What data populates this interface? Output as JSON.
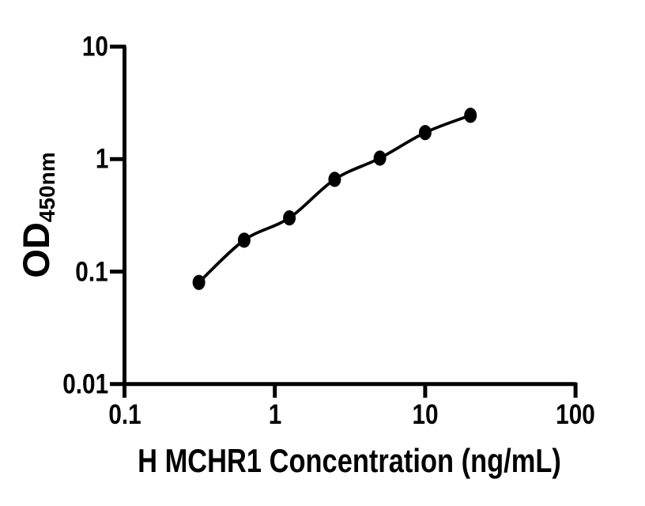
{
  "figure": {
    "background": "#ffffff",
    "axis_color": "#000000",
    "text_color": "#000000"
  },
  "chart_data": {
    "type": "scatter",
    "title": "",
    "xlabel": "H MCHR1 Concentration (ng/mL)",
    "ylabel": "OD",
    "ylabel_subscript": "450nm",
    "x_scale": "log",
    "y_scale": "log",
    "xlim": [
      0.1,
      100
    ],
    "ylim": [
      0.01,
      10
    ],
    "x_ticks": [
      "0.1",
      "1",
      "10",
      "100"
    ],
    "y_ticks": [
      "10",
      "1",
      "0.1",
      "0.01"
    ],
    "grid": false,
    "legend": false,
    "series": [
      {
        "marker": "filled-circle",
        "line": "smooth-fit",
        "color": "#000000",
        "x": [
          0.3125,
          0.625,
          1.25,
          2.5,
          5,
          10,
          20
        ],
        "y": [
          0.08,
          0.19,
          0.3,
          0.66,
          1.02,
          1.72,
          2.45
        ]
      }
    ]
  }
}
